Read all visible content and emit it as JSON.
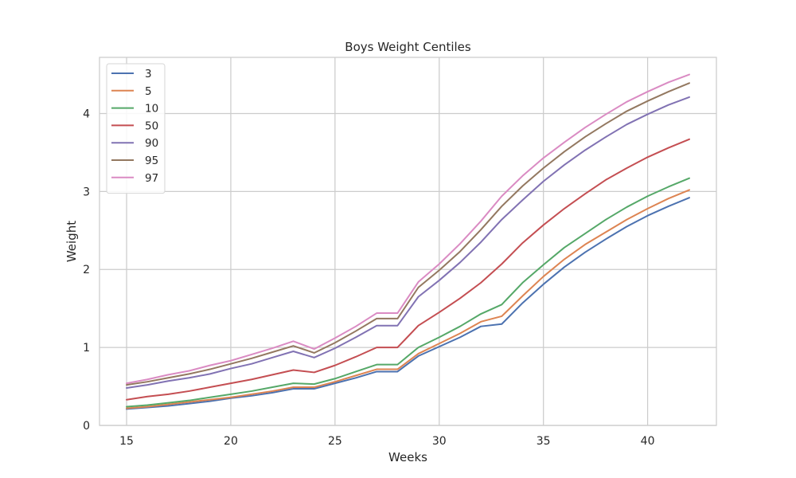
{
  "chart_data": {
    "type": "line",
    "title": "Boys Weight Centiles",
    "xlabel": "Weeks",
    "ylabel": "Weight",
    "xlim": [
      13.7,
      43.3
    ],
    "ylim": [
      0,
      4.72
    ],
    "xticks": [
      15,
      20,
      25,
      30,
      35,
      40
    ],
    "yticks": [
      0,
      1,
      2,
      3,
      4
    ],
    "grid": true,
    "legend_position": "upper left",
    "x": [
      15,
      16,
      17,
      18,
      19,
      20,
      21,
      22,
      23,
      24,
      25,
      26,
      27,
      28,
      29,
      30,
      31,
      32,
      33,
      34,
      35,
      36,
      37,
      38,
      39,
      40,
      41,
      42
    ],
    "series": [
      {
        "name": "3",
        "color": "#4c72b0",
        "values": [
          0.21,
          0.23,
          0.25,
          0.28,
          0.31,
          0.35,
          0.38,
          0.42,
          0.47,
          0.47,
          0.54,
          0.61,
          0.69,
          0.69,
          0.89,
          1.01,
          1.13,
          1.27,
          1.3,
          1.57,
          1.81,
          2.03,
          2.22,
          2.39,
          2.55,
          2.69,
          2.81,
          2.92
        ]
      },
      {
        "name": "5",
        "color": "#dd8452",
        "values": [
          0.22,
          0.24,
          0.27,
          0.3,
          0.33,
          0.36,
          0.4,
          0.44,
          0.49,
          0.49,
          0.56,
          0.64,
          0.72,
          0.72,
          0.92,
          1.05,
          1.18,
          1.33,
          1.4,
          1.66,
          1.91,
          2.13,
          2.32,
          2.48,
          2.64,
          2.78,
          2.91,
          3.02
        ]
      },
      {
        "name": "10",
        "color": "#55a868",
        "values": [
          0.24,
          0.26,
          0.29,
          0.32,
          0.36,
          0.4,
          0.44,
          0.49,
          0.54,
          0.53,
          0.6,
          0.69,
          0.78,
          0.78,
          1.0,
          1.13,
          1.27,
          1.43,
          1.55,
          1.83,
          2.06,
          2.28,
          2.46,
          2.64,
          2.8,
          2.94,
          3.06,
          3.17
        ]
      },
      {
        "name": "50",
        "color": "#c44e52",
        "values": [
          0.33,
          0.37,
          0.4,
          0.44,
          0.49,
          0.54,
          0.59,
          0.65,
          0.71,
          0.68,
          0.77,
          0.88,
          1.0,
          1.0,
          1.28,
          1.45,
          1.63,
          1.83,
          2.07,
          2.34,
          2.57,
          2.78,
          2.97,
          3.15,
          3.3,
          3.44,
          3.56,
          3.67
        ]
      },
      {
        "name": "90",
        "color": "#8172b3",
        "values": [
          0.48,
          0.52,
          0.57,
          0.61,
          0.66,
          0.73,
          0.79,
          0.87,
          0.95,
          0.87,
          0.99,
          1.13,
          1.28,
          1.28,
          1.65,
          1.86,
          2.09,
          2.35,
          2.64,
          2.89,
          3.13,
          3.34,
          3.53,
          3.7,
          3.86,
          3.99,
          4.11,
          4.21
        ]
      },
      {
        "name": "95",
        "color": "#937860",
        "values": [
          0.52,
          0.56,
          0.61,
          0.66,
          0.72,
          0.79,
          0.86,
          0.94,
          1.02,
          0.93,
          1.06,
          1.21,
          1.37,
          1.37,
          1.77,
          1.99,
          2.23,
          2.51,
          2.81,
          3.07,
          3.3,
          3.51,
          3.7,
          3.87,
          4.03,
          4.16,
          4.28,
          4.39
        ]
      },
      {
        "name": "97",
        "color": "#da8bc3",
        "values": [
          0.54,
          0.59,
          0.65,
          0.7,
          0.77,
          0.83,
          0.91,
          0.99,
          1.08,
          0.98,
          1.12,
          1.27,
          1.44,
          1.44,
          1.84,
          2.07,
          2.33,
          2.62,
          2.94,
          3.2,
          3.43,
          3.63,
          3.82,
          3.99,
          4.15,
          4.28,
          4.4,
          4.5
        ]
      }
    ]
  }
}
